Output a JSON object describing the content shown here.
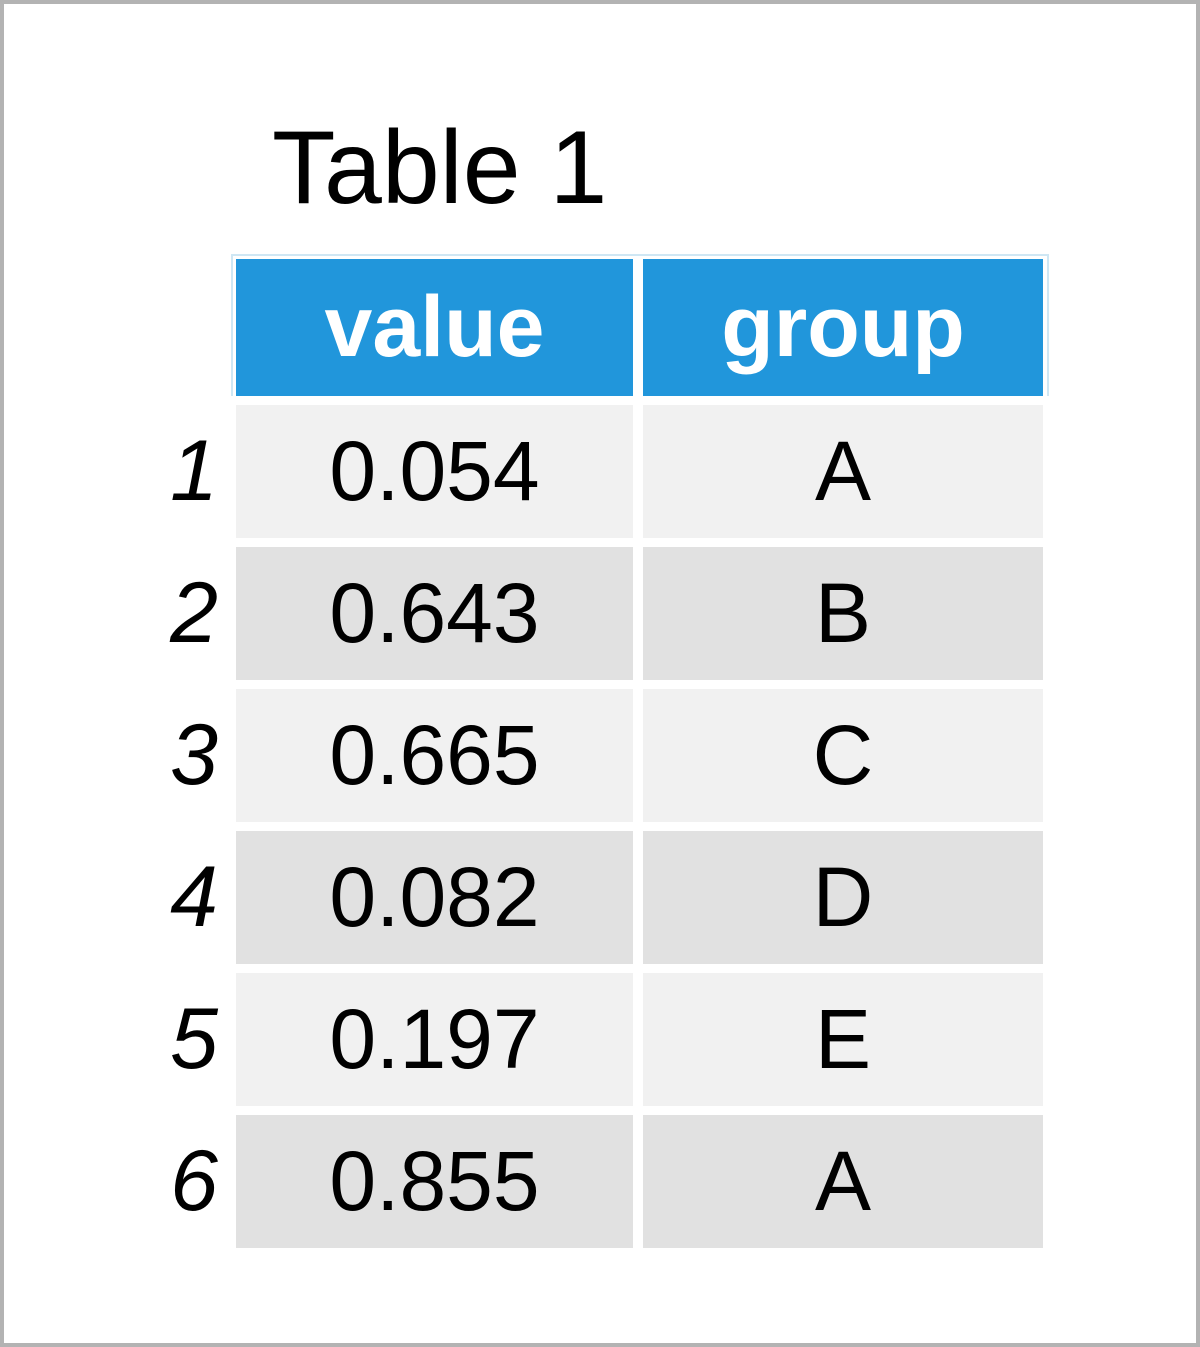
{
  "title": "Table 1",
  "table": {
    "columns": [
      "value",
      "group"
    ],
    "rows": [
      {
        "index": "1",
        "value": "0.054",
        "group": "A"
      },
      {
        "index": "2",
        "value": "0.643",
        "group": "B"
      },
      {
        "index": "3",
        "value": "0.665",
        "group": "C"
      },
      {
        "index": "4",
        "value": "0.082",
        "group": "D"
      },
      {
        "index": "5",
        "value": "0.197",
        "group": "E"
      },
      {
        "index": "6",
        "value": "0.855",
        "group": "A"
      }
    ]
  },
  "colors": {
    "header_bg": "#2196db",
    "header_text": "#ffffff",
    "header_outline": "#cfe7f4",
    "row_odd_bg": "#f1f1f1",
    "row_even_bg": "#e1e1e1",
    "frame_border": "#b3b3b3",
    "text": "#000000"
  }
}
